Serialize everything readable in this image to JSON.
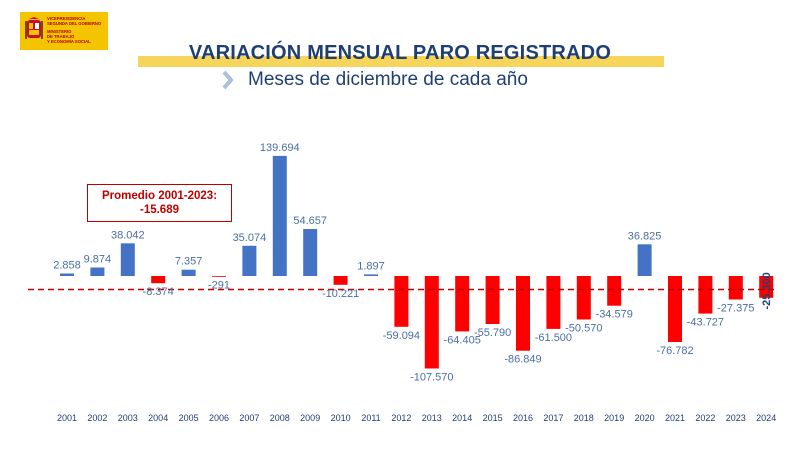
{
  "header": {
    "logo_lines": [
      "VICEPRESIDENCIA",
      "SEGUNDA DEL GOBIERNO",
      "MINISTERIO",
      "DE TRABAJO",
      "Y ECONOMÍA SOCIAL"
    ],
    "title": "VARIACIÓN MENSUAL PARO REGISTRADO",
    "subtitle": "Meses de diciembre de cada año"
  },
  "callout": {
    "label": "Promedio 2001-2023:",
    "value": "-15.689"
  },
  "colors": {
    "positive": "#4472c4",
    "negative": "#ff0000",
    "average_line": "#c00000",
    "title": "#1f3f73",
    "label": "#4a6fa5"
  },
  "chart_data": {
    "type": "bar",
    "title": "VARIACIÓN MENSUAL PARO REGISTRADO",
    "subtitle": "Meses de diciembre de cada año",
    "categories": [
      "2001",
      "2002",
      "2003",
      "2004",
      "2005",
      "2006",
      "2007",
      "2008",
      "2009",
      "2010",
      "2011",
      "2012",
      "2013",
      "2014",
      "2015",
      "2016",
      "2017",
      "2018",
      "2019",
      "2020",
      "2021",
      "2022",
      "2023",
      "2024"
    ],
    "values": [
      2858,
      9874,
      38042,
      -8374,
      7357,
      -291,
      35074,
      139694,
      54657,
      -10221,
      1897,
      -59094,
      -107570,
      -64405,
      -55790,
      -86849,
      -61500,
      -50570,
      -34579,
      36825,
      -76782,
      -43727,
      -27375,
      -25300
    ],
    "value_labels": [
      "2.858",
      "9.874",
      "38.042",
      "-8.374",
      "7.357",
      "-291",
      "35.074",
      "139.694",
      "54.657",
      "-10.221",
      "1.897",
      "-59.094",
      "-107.570",
      "-64.405",
      "-55.790",
      "-86.849",
      "-61.500",
      "-50.570",
      "-34.579",
      "36.825",
      "-76.782",
      "-43.727",
      "-27.375",
      "-25.300"
    ],
    "reference_line": {
      "label": "Promedio 2001-2023",
      "value": -15689,
      "style": "dashed"
    },
    "xlabel": "",
    "ylabel": "",
    "grid": false,
    "legend": "none"
  }
}
